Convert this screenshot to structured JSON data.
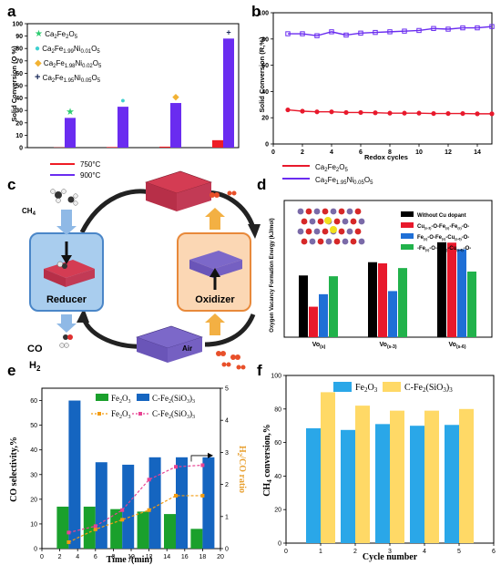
{
  "panel_labels": [
    "a",
    "b",
    "c",
    "d",
    "e",
    "f"
  ],
  "chart_data": [
    {
      "panel": "a",
      "type": "bar",
      "categories": [
        "Ca2Fe2O5",
        "Ca2Fe1.99Ni0.01O5",
        "Ca2Fe1.98Ni0.02O5",
        "Ca2Fe1.95Ni0.05O5"
      ],
      "series": [
        {
          "name": "750°C",
          "color": "#ee1c25",
          "values": [
            0.2,
            0.5,
            0.8,
            6
          ]
        },
        {
          "name": "900°C",
          "color": "#6a2cf0",
          "values": [
            24,
            33,
            36,
            88
          ]
        }
      ],
      "markers": [
        {
          "label_parts": [
            [
              "Ca",
              ""
            ],
            [
              "2",
              ""
            ],
            [
              "Fe",
              ""
            ],
            [
              "2",
              ""
            ],
            [
              "O",
              ""
            ],
            [
              "5",
              ""
            ]
          ],
          "text": "Ca2Fe2O5",
          "symbol": "★",
          "color": "#2ecc71"
        },
        {
          "text": "Ca2Fe1.99Ni0.01O5",
          "symbol": "●",
          "color": "#3ed0d0"
        },
        {
          "text": "Ca2Fe1.98Ni0.02O5",
          "symbol": "◆",
          "color": "#f2b233"
        },
        {
          "text": "Ca2Fe1.95Ni0.05O5",
          "symbol": "+",
          "color": "#1a2a5a"
        }
      ],
      "ylabel": "Solid Conversion (O %)",
      "ylim": [
        0,
        100
      ],
      "yticks": [
        "0",
        "10",
        "20",
        "30",
        "40",
        "50",
        "60",
        "70",
        "80",
        "90",
        "100"
      ]
    },
    {
      "panel": "b",
      "type": "line",
      "x": [
        1,
        2,
        3,
        4,
        5,
        6,
        7,
        8,
        9,
        10,
        11,
        12,
        13,
        14,
        15
      ],
      "series": [
        {
          "name": "Ca2Fe2O5",
          "color": "#e8192c",
          "values": [
            26,
            25,
            24.5,
            24.5,
            24,
            24,
            23.8,
            23.5,
            23.5,
            23.5,
            23.2,
            23.2,
            23.2,
            23,
            23
          ]
        },
        {
          "name": "Ca2Fe1.95Ni0.05O5",
          "color": "#6a2cf0",
          "values": [
            84,
            84,
            82.5,
            85.5,
            83,
            84.5,
            85,
            85.5,
            86,
            86.5,
            88,
            87.5,
            88.5,
            88.5,
            89.5
          ]
        }
      ],
      "xlabel": "Redox cycles",
      "ylabel": "Solid Conversion (R,%)",
      "xlim": [
        0,
        15
      ],
      "ylim": [
        0,
        100
      ],
      "xticks": [
        "0",
        "2",
        "4",
        "6",
        "8",
        "10",
        "12",
        "14"
      ],
      "yticks": [
        "0",
        "20",
        "40",
        "60",
        "80",
        "100"
      ]
    },
    {
      "panel": "d",
      "type": "bar",
      "categories": [
        "Vo(s)",
        "Vo(s-3)",
        "Vo(s-6)"
      ],
      "series": [
        {
          "name": "Without Cu dopant",
          "color": "#000000",
          "values": [
            258,
            292,
            343
          ]
        },
        {
          "name": "Cu(s-3)-O-Fe(s)-Fe(s)-O-",
          "color": "#e8192c",
          "values": [
            178,
            289,
            342
          ]
        },
        {
          "name": "Fe(s)-O-Fe(s)-Cu(s-6)-O-",
          "color": "#1f6fd6",
          "values": [
            210,
            218,
            325
          ]
        },
        {
          "name": "-Fe(s)-O-Fe(s)-Cu(s-6)-O-",
          "color": "#21b24b",
          "values": [
            256,
            277,
            268
          ]
        }
      ],
      "ylabel": "Oxygen Vacancy Formation Energy (kJ/mol)",
      "ylim": [
        100,
        450
      ]
    },
    {
      "panel": "e",
      "type": "bar",
      "x": [
        3,
        6,
        9,
        12,
        15,
        18
      ],
      "series": [
        {
          "name": "Fe2O3",
          "color": "#1aa02c",
          "values": [
            17,
            17,
            16,
            15,
            14,
            8
          ]
        },
        {
          "name": "C-Fe2(SiO3)3",
          "color": "#1565c0",
          "values": [
            60,
            35,
            34,
            37,
            37,
            37
          ]
        }
      ],
      "line_series": [
        {
          "name": "Fe2O3",
          "color": "#f39c12",
          "values": [
            0.2,
            0.6,
            0.9,
            1.2,
            1.65,
            1.65
          ]
        },
        {
          "name": "C-Fe2(SiO3)3",
          "color": "#e84393",
          "values": [
            0.5,
            0.7,
            1.2,
            2.15,
            2.55,
            2.6
          ]
        }
      ],
      "xlabel": "Time /(min)",
      "ylabel": "CO selectivity,%",
      "y2label": "H2/CO ratio",
      "xlim": [
        0,
        20
      ],
      "ylim": [
        0,
        65
      ],
      "y2lim": [
        0,
        5
      ],
      "xticks": [
        "0",
        "2",
        "4",
        "6",
        "8",
        "10",
        "12",
        "14",
        "16",
        "18",
        "20"
      ],
      "yticks": [
        "0",
        "10",
        "20",
        "30",
        "40",
        "50",
        "60"
      ],
      "y2ticks": [
        "0",
        "1",
        "2",
        "3",
        "4",
        "5"
      ]
    },
    {
      "panel": "f",
      "type": "bar",
      "x": [
        1,
        2,
        3,
        4,
        5
      ],
      "series": [
        {
          "name": "Fe2O3",
          "color": "#2aa7e8",
          "values": [
            68.5,
            67.5,
            71,
            70,
            70.5
          ]
        },
        {
          "name": "C-Fe2(SiO3)3",
          "color": "#ffd966",
          "values": [
            90,
            82,
            79,
            79,
            80
          ]
        }
      ],
      "xlabel": "Cycle number",
      "ylabel": "CH4 conversion,%",
      "xlim": [
        0,
        6
      ],
      "ylim": [
        0,
        100
      ],
      "xticks": [
        "0",
        "1",
        "2",
        "3",
        "4",
        "5",
        "6"
      ],
      "yticks": [
        "0",
        "20",
        "40",
        "60",
        "80",
        "100"
      ]
    }
  ],
  "diagram": {
    "reducer_label": "Reducer",
    "oxidizer_label": "Oxidizer",
    "inlet_top": "CH4",
    "outlet_bottom_1": "CO",
    "outlet_bottom_2": "H2",
    "inlet_air": "Air"
  },
  "legend_a": {
    "t750": "750°C",
    "t900": "900°C"
  },
  "legend_b": {
    "s1": "Ca2Fe2O5",
    "s2": "Ca2Fe1.95Ni0.05O5"
  },
  "colors": {
    "reducer_fill": "#a9cdee",
    "reducer_stroke": "#4a86c8",
    "oxidizer_fill": "#fbd7b4",
    "oxidizer_stroke": "#e8893a"
  }
}
